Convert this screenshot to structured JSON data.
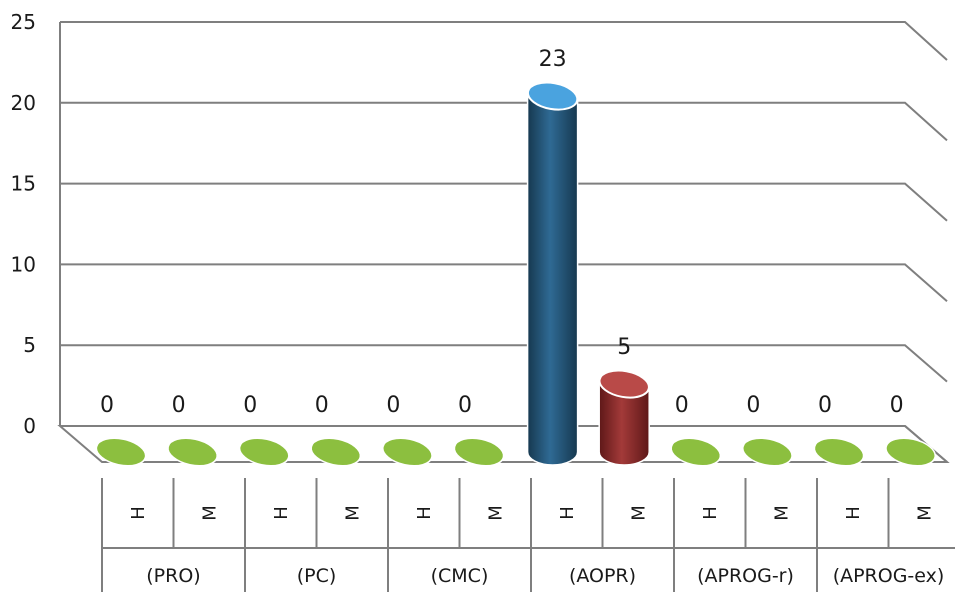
{
  "chart_data": {
    "type": "bar",
    "ylim": [
      0,
      25
    ],
    "yticks": [
      0,
      5,
      10,
      15,
      20,
      25
    ],
    "grid": true,
    "groups": [
      {
        "label": "(PRO)",
        "bars": [
          {
            "sub": "H",
            "value": 0,
            "label": "0",
            "color": "#8cbf3f"
          },
          {
            "sub": "M",
            "value": 0,
            "label": "0",
            "color": "#8cbf3f"
          }
        ]
      },
      {
        "label": "(PC)",
        "bars": [
          {
            "sub": "H",
            "value": 0,
            "label": "0",
            "color": "#8cbf3f"
          },
          {
            "sub": "M",
            "value": 0,
            "label": "0",
            "color": "#8cbf3f"
          }
        ]
      },
      {
        "label": "(CMC)",
        "bars": [
          {
            "sub": "H",
            "value": 0,
            "label": "0",
            "color": "#8cbf3f"
          },
          {
            "sub": "M",
            "value": 0,
            "label": "0",
            "color": "#8cbf3f"
          }
        ]
      },
      {
        "label": "(AOPR)",
        "bars": [
          {
            "sub": "H",
            "value": 23,
            "label": "23",
            "color": "#1f4e79"
          },
          {
            "sub": "M",
            "value": 5,
            "label": "5",
            "color": "#8b2a2a"
          }
        ]
      },
      {
        "label": "(APROG-r)",
        "bars": [
          {
            "sub": "H",
            "value": 0,
            "label": "0",
            "color": "#8cbf3f"
          },
          {
            "sub": "M",
            "value": 0,
            "label": "0",
            "color": "#8cbf3f"
          }
        ]
      },
      {
        "label": "(APROG-ex)",
        "bars": [
          {
            "sub": "H",
            "value": 0,
            "label": "0",
            "color": "#8cbf3f"
          },
          {
            "sub": "M",
            "value": 0,
            "label": "0",
            "color": "#8cbf3f"
          }
        ]
      }
    ],
    "colors": {
      "zero": "#8cbf3f",
      "blue": "#1f4e79",
      "blue_top": "#4aa3df",
      "red": "#8b2a2a",
      "red_top": "#b94a48"
    }
  }
}
